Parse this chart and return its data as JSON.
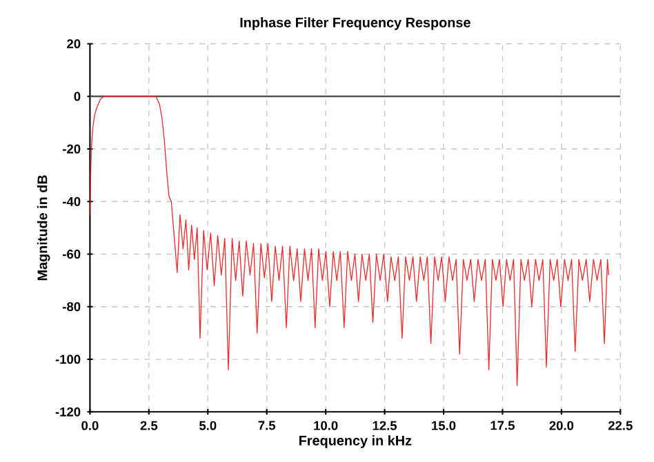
{
  "chart_data": {
    "type": "line",
    "title": "Inphase Filter Frequency Response",
    "xlabel": "Frequency in kHz",
    "ylabel": "Magnitude in dB",
    "xlim": [
      0,
      22.5
    ],
    "ylim": [
      -120,
      20
    ],
    "xticks": [
      {
        "value": 0,
        "label": "0.0"
      },
      {
        "value": 2.5,
        "label": "2.5"
      },
      {
        "value": 5,
        "label": "5.0"
      },
      {
        "value": 7.5,
        "label": "7.5"
      },
      {
        "value": 10,
        "label": "10.0"
      },
      {
        "value": 12.5,
        "label": "12.5"
      },
      {
        "value": 15,
        "label": "15.0"
      },
      {
        "value": 17.5,
        "label": "17.5"
      },
      {
        "value": 20,
        "label": "20.0"
      },
      {
        "value": 22.5,
        "label": "22.5"
      }
    ],
    "yticks": [
      -120,
      -100,
      -80,
      -60,
      -40,
      -20,
      0,
      20
    ],
    "grid": true,
    "marker": "none",
    "line_style": "solid",
    "ref_lines": [
      {
        "axis": "y",
        "value": 0,
        "color": "#555555"
      }
    ],
    "series": [
      {
        "color": "#ee2b2b",
        "x": [
          0,
          0.03,
          0.06,
          0.12,
          0.2,
          0.3,
          0.45,
          0.6,
          2.8,
          2.95,
          3.05,
          3.15,
          3.25,
          3.35,
          3.45,
          3.7,
          3.82,
          3.95,
          4.07,
          4.19,
          4.31,
          4.43,
          4.55,
          4.67,
          4.82,
          4.97,
          5.12,
          5.27,
          5.42,
          5.57,
          5.72,
          5.87,
          6.03,
          6.18,
          6.33,
          6.48,
          6.63,
          6.79,
          6.94,
          7.09,
          7.25,
          7.4,
          7.55,
          7.71,
          7.86,
          8.02,
          8.17,
          8.33,
          8.48,
          8.64,
          8.79,
          8.94,
          9.1,
          9.25,
          9.4,
          9.55,
          9.7,
          9.86,
          10.01,
          10.17,
          10.32,
          10.47,
          10.62,
          10.78,
          10.93,
          11.09,
          11.24,
          11.39,
          11.54,
          11.7,
          11.85,
          12.0,
          12.15,
          12.31,
          12.46,
          12.62,
          12.77,
          12.93,
          13.08,
          13.24,
          13.39,
          13.55,
          13.7,
          13.85,
          14.01,
          14.16,
          14.31,
          14.46,
          14.62,
          14.77,
          14.92,
          15.07,
          15.23,
          15.38,
          15.53,
          15.68,
          15.84,
          15.99,
          16.15,
          16.3,
          16.46,
          16.61,
          16.77,
          16.92,
          17.07,
          17.22,
          17.37,
          17.52,
          17.67,
          17.82,
          17.97,
          18.12,
          18.28,
          18.43,
          18.59,
          18.74,
          18.9,
          19.05,
          19.21,
          19.36,
          19.52,
          19.67,
          19.82,
          19.97,
          20.13,
          20.28,
          20.43,
          20.58,
          20.74,
          20.89,
          21.05,
          21.2,
          21.36,
          21.51,
          21.67,
          21.82,
          21.95,
          22.0
        ],
        "values": [
          -45,
          -30,
          -20,
          -12,
          -7,
          -4,
          -1,
          0,
          0,
          -3,
          -8,
          -16,
          -28,
          -38,
          -40,
          -67,
          -45,
          -58,
          -47,
          -66,
          -49,
          -62,
          -50,
          -92,
          -51,
          -66,
          -52,
          -72,
          -53,
          -68,
          -54,
          -104,
          -54,
          -70,
          -55,
          -76,
          -55,
          -68,
          -56,
          -90,
          -56,
          -69,
          -56,
          -78,
          -57,
          -70,
          -57,
          -88,
          -57,
          -70,
          -58,
          -78,
          -58,
          -70,
          -58,
          -88,
          -58,
          -70,
          -59,
          -80,
          -59,
          -70,
          -59,
          -88,
          -59,
          -70,
          -60,
          -78,
          -60,
          -70,
          -60,
          -86,
          -60,
          -70,
          -60,
          -78,
          -61,
          -70,
          -61,
          -92,
          -61,
          -70,
          -61,
          -78,
          -61,
          -70,
          -61,
          -94,
          -61,
          -70,
          -61,
          -78,
          -61,
          -70,
          -62,
          -98,
          -62,
          -70,
          -62,
          -78,
          -62,
          -70,
          -62,
          -104,
          -62,
          -70,
          -62,
          -80,
          -62,
          -70,
          -62,
          -110,
          -62,
          -70,
          -62,
          -80,
          -62,
          -70,
          -62,
          -103,
          -62,
          -70,
          -62,
          -80,
          -62,
          -70,
          -62,
          -97,
          -62,
          -70,
          -62,
          -78,
          -62,
          -70,
          -62,
          -94,
          -62,
          -68
        ]
      }
    ]
  }
}
